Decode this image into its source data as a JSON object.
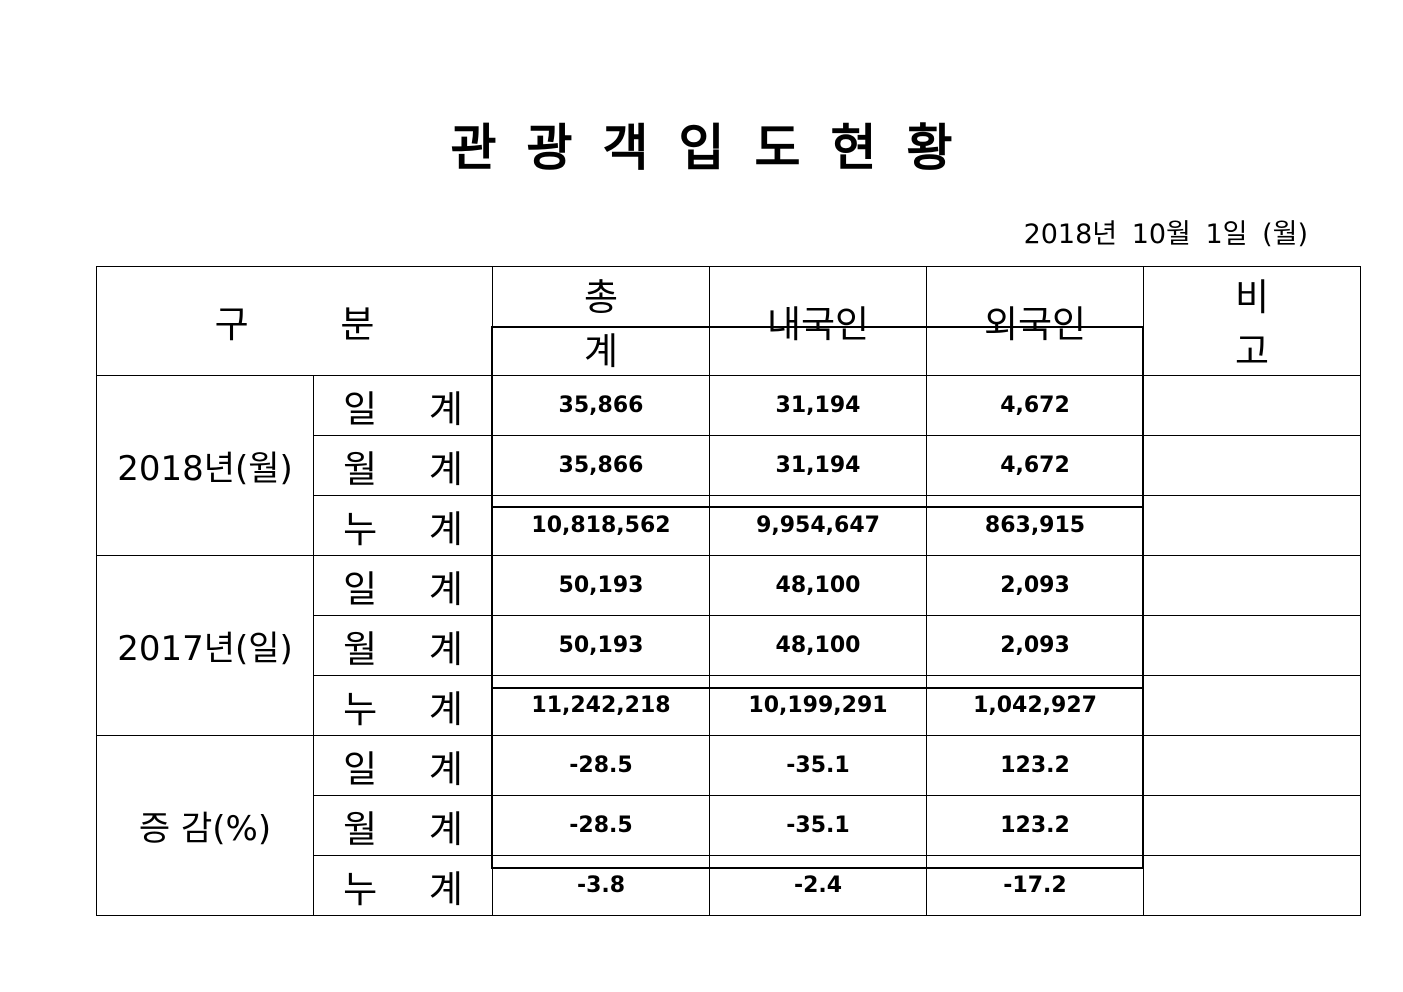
{
  "title": "관광객입도현황",
  "date": "2018년 10월 1일 (월)",
  "headers": [
    "구 분",
    "총 계",
    "내국인",
    "외국인",
    "비 고"
  ],
  "groups": [
    {
      "label": "2018년(월)",
      "rows": [
        {
          "label": "일 계",
          "total": "35,866",
          "domestic": "31,194",
          "foreign": "4,672",
          "note": ""
        },
        {
          "label": "월 계",
          "total": "35,866",
          "domestic": "31,194",
          "foreign": "4,672",
          "note": ""
        },
        {
          "label": "누 계",
          "total": "10,818,562",
          "domestic": "9,954,647",
          "foreign": "863,915",
          "note": ""
        }
      ]
    },
    {
      "label": "2017년(일)",
      "rows": [
        {
          "label": "일 계",
          "total": "50,193",
          "domestic": "48,100",
          "foreign": "2,093",
          "note": ""
        },
        {
          "label": "월 계",
          "total": "50,193",
          "domestic": "48,100",
          "foreign": "2,093",
          "note": ""
        },
        {
          "label": "누 계",
          "total": "11,242,218",
          "domestic": "10,199,291",
          "foreign": "1,042,927",
          "note": ""
        }
      ]
    },
    {
      "label": "증 감(%)",
      "rows": [
        {
          "label": "일 계",
          "total": "-28.5",
          "domestic": "-35.1",
          "foreign": "123.2",
          "note": ""
        },
        {
          "label": "월 계",
          "total": "-28.5",
          "domestic": "-35.1",
          "foreign": "123.2",
          "note": ""
        },
        {
          "label": "누 계",
          "total": "-3.8",
          "domestic": "-2.4",
          "foreign": "-17.2",
          "note": ""
        }
      ]
    }
  ]
}
